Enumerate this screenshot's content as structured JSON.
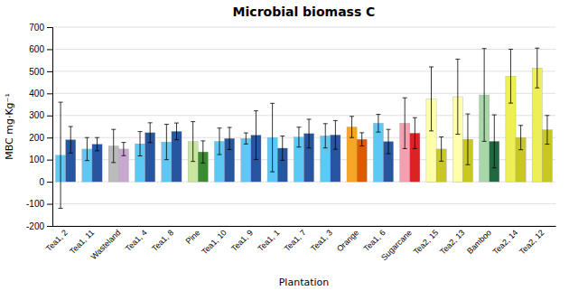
{
  "chart_data": {
    "type": "bar",
    "title": "Microbial biomass C",
    "xlabel": "Plantation",
    "ylabel": "MBC mg·Kg⁻¹",
    "categories": [
      "Tea1, 2",
      "Tea1, 11",
      "Wasteland",
      "Tea1, 4",
      "Tea1, 8",
      "Pine",
      "Tea1, 10",
      "Tea1, 9",
      "Tea1, 1",
      "Tea1, 7",
      "Tea1, 3",
      "Orange",
      "Tea1, 6",
      "Sugarcane",
      "Tea2, 15",
      "Tea2, 13",
      "Bamboo",
      "Tea2, 14",
      "Tea2, 12"
    ],
    "series": [
      {
        "values": [
          120,
          148,
          162,
          172,
          180,
          182,
          183,
          196,
          200,
          202,
          208,
          248,
          265,
          265,
          375,
          385,
          393,
          478,
          515
        ],
        "errors": [
          240,
          52,
          75,
          55,
          80,
          90,
          60,
          25,
          155,
          45,
          55,
          48,
          40,
          115,
          145,
          170,
          210,
          122,
          90
        ],
        "colors": [
          "#5BC8F5",
          "#5BC8F5",
          "#BBBBBB",
          "#5BC8F5",
          "#5BC8F5",
          "#C8E6A0",
          "#5BC8F5",
          "#5BC8F5",
          "#5BC8F5",
          "#5BC8F5",
          "#5BC8F5",
          "#F5A623",
          "#5BC8F5",
          "#F5A0B0",
          "#FFFFAA",
          "#FFFFAA",
          "#A8D8A8",
          "#EEEE55",
          "#EEEE55"
        ]
      },
      {
        "values": [
          190,
          170,
          148,
          222,
          228,
          135,
          196,
          211,
          152,
          218,
          212,
          192,
          182,
          220,
          148,
          192,
          183,
          200,
          235
        ],
        "errors": [
          60,
          30,
          30,
          45,
          38,
          50,
          50,
          110,
          55,
          65,
          65,
          30,
          55,
          70,
          55,
          115,
          120,
          55,
          65
        ],
        "colors": [
          "#2855A0",
          "#2855A0",
          "#C9A8D0",
          "#2855A0",
          "#2855A0",
          "#3A8A30",
          "#2855A0",
          "#2855A0",
          "#2855A0",
          "#2855A0",
          "#2855A0",
          "#E05800",
          "#2855A0",
          "#DD2222",
          "#C8C820",
          "#C8C820",
          "#206840",
          "#C8C820",
          "#C8C820"
        ]
      }
    ],
    "ylim": [
      -200,
      700
    ],
    "yticks": [
      -200,
      -100,
      0,
      100,
      200,
      300,
      400,
      500,
      600,
      700
    ],
    "grid": true
  }
}
